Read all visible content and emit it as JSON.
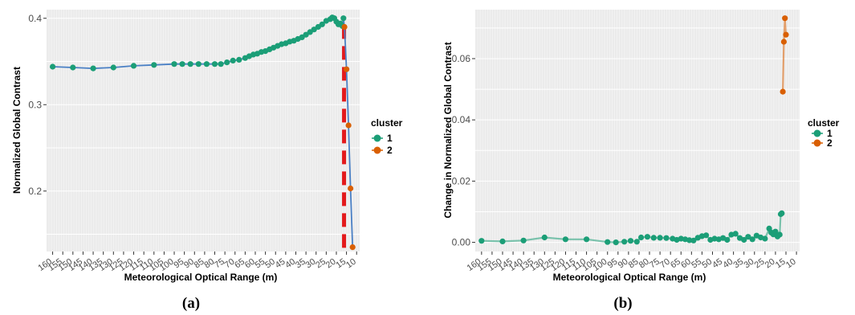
{
  "chart_data": [
    {
      "type": "line",
      "caption": "(a)",
      "xlabel": "Meteorological Optical Range (m)",
      "ylabel": "Normalized Global Contrast",
      "yticks": [
        "0.2",
        "0.3",
        "0.4"
      ],
      "ylim": [
        0.13,
        0.41
      ],
      "x_reversed": true,
      "xtick_labels": [
        "160",
        "155",
        "150",
        "145",
        "140",
        "135",
        "130",
        "125",
        "120",
        "115",
        "110",
        "105",
        "100",
        "95",
        "90",
        "85",
        "80",
        "75",
        "70",
        "65",
        "60",
        "55",
        "50",
        "45",
        "40",
        "35",
        "30",
        "25",
        "20",
        "15",
        "10"
      ],
      "threshold_x": 17,
      "legend": {
        "title": "cluster",
        "items": [
          "1",
          "2"
        ]
      },
      "colors": {
        "1": "#1b9e77",
        "2": "#d95f02",
        "line": "#4a80c5",
        "threshold": "#e31a1c"
      },
      "series": [
        {
          "name": "1",
          "points": [
            [
              160,
              0.344
            ],
            [
              150,
              0.343
            ],
            [
              140,
              0.342
            ],
            [
              130,
              0.343
            ],
            [
              120,
              0.345
            ],
            [
              110,
              0.346
            ],
            [
              100,
              0.347
            ],
            [
              96,
              0.347
            ],
            [
              92,
              0.347
            ],
            [
              88,
              0.347
            ],
            [
              84,
              0.347
            ],
            [
              80,
              0.347
            ],
            [
              77,
              0.347
            ],
            [
              74,
              0.349
            ],
            [
              71,
              0.351
            ],
            [
              68,
              0.352
            ],
            [
              65,
              0.354
            ],
            [
              63,
              0.356
            ],
            [
              61,
              0.358
            ],
            [
              59,
              0.359
            ],
            [
              57,
              0.361
            ],
            [
              55,
              0.362
            ],
            [
              53,
              0.364
            ],
            [
              51,
              0.366
            ],
            [
              49,
              0.368
            ],
            [
              47,
              0.37
            ],
            [
              45,
              0.371
            ],
            [
              43,
              0.373
            ],
            [
              41,
              0.374
            ],
            [
              39,
              0.376
            ],
            [
              37,
              0.378
            ],
            [
              35,
              0.381
            ],
            [
              33,
              0.384
            ],
            [
              31,
              0.387
            ],
            [
              29,
              0.39
            ],
            [
              27,
              0.393
            ],
            [
              25,
              0.397
            ],
            [
              23,
              0.399
            ],
            [
              22,
              0.401
            ],
            [
              21,
              0.4
            ],
            [
              20,
              0.396
            ],
            [
              19,
              0.393
            ],
            [
              18,
              0.394
            ],
            [
              17,
              0.391
            ],
            [
              16.5,
              0.4
            ]
          ]
        },
        {
          "name": "2",
          "points": [
            [
              16,
              0.39
            ],
            [
              15,
              0.341
            ],
            [
              14,
              0.276
            ],
            [
              13,
              0.203
            ],
            [
              12,
              0.135
            ]
          ]
        }
      ]
    },
    {
      "type": "line",
      "caption": "(b)",
      "xlabel": "Meteorological Optical Range (m)",
      "ylabel": "Change in Normalized Global Contrast",
      "yticks": [
        "0.00",
        "0.02",
        "0.04",
        "0.06"
      ],
      "ylim": [
        -0.003,
        0.076
      ],
      "x_reversed": true,
      "xtick_labels": [
        "160",
        "155",
        "150",
        "145",
        "140",
        "135",
        "130",
        "125",
        "120",
        "115",
        "110",
        "105",
        "100",
        "95",
        "90",
        "85",
        "80",
        "75",
        "70",
        "65",
        "60",
        "55",
        "50",
        "45",
        "40",
        "35",
        "30",
        "25",
        "20",
        "15",
        "10"
      ],
      "legend": {
        "title": "cluster",
        "items": [
          "1",
          "2"
        ]
      },
      "colors": {
        "1": "#1b9e77",
        "2": "#d95f02"
      },
      "series": [
        {
          "name": "1",
          "points": [
            [
              160,
              0.0005
            ],
            [
              150,
              0.0003
            ],
            [
              140,
              0.0006
            ],
            [
              130,
              0.0016
            ],
            [
              120,
              0.001
            ],
            [
              110,
              0.001
            ],
            [
              100,
              0.0001
            ],
            [
              96,
              0.0
            ],
            [
              92,
              0.0002
            ],
            [
              89,
              0.0005
            ],
            [
              86,
              0.0002
            ],
            [
              84,
              0.0016
            ],
            [
              81,
              0.0018
            ],
            [
              78,
              0.0015
            ],
            [
              75,
              0.0015
            ],
            [
              72,
              0.0014
            ],
            [
              69,
              0.0012
            ],
            [
              67,
              0.0008
            ],
            [
              65,
              0.0012
            ],
            [
              63,
              0.001
            ],
            [
              61,
              0.0007
            ],
            [
              59,
              0.0006
            ],
            [
              57,
              0.0015
            ],
            [
              55,
              0.002
            ],
            [
              53,
              0.0023
            ],
            [
              51,
              0.0008
            ],
            [
              49,
              0.0012
            ],
            [
              47,
              0.001
            ],
            [
              45,
              0.0014
            ],
            [
              43,
              0.0008
            ],
            [
              41,
              0.0025
            ],
            [
              39,
              0.0028
            ],
            [
              37,
              0.0014
            ],
            [
              35,
              0.0008
            ],
            [
              33,
              0.0018
            ],
            [
              31,
              0.001
            ],
            [
              29,
              0.0022
            ],
            [
              27,
              0.0016
            ],
            [
              25,
              0.0012
            ],
            [
              23,
              0.0045
            ],
            [
              22,
              0.0032
            ],
            [
              21,
              0.0026
            ],
            [
              20,
              0.0035
            ],
            [
              19,
              0.0019
            ],
            [
              18,
              0.0025
            ],
            [
              17.5,
              0.0092
            ],
            [
              17,
              0.0095
            ]
          ]
        },
        {
          "name": "2",
          "points": [
            [
              16.5,
              0.0492
            ],
            [
              16,
              0.0655
            ],
            [
              15.5,
              0.0732
            ],
            [
              15,
              0.0678
            ]
          ]
        }
      ]
    }
  ]
}
